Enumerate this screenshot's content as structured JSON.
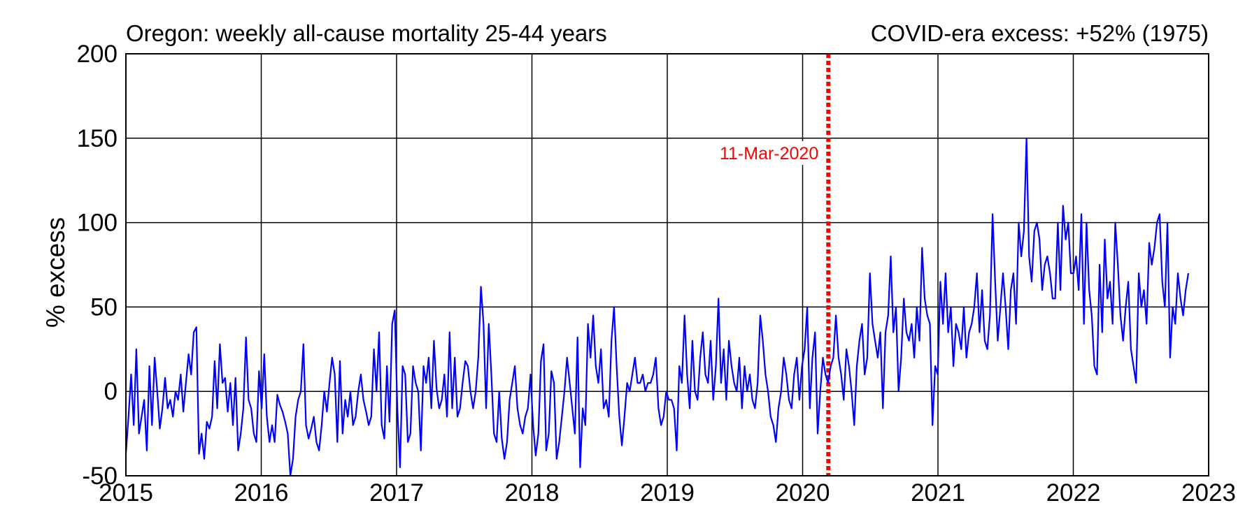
{
  "chart_data": {
    "type": "line",
    "title": "Oregon: weekly all-cause mortality 25-44 years",
    "subtitle": "COVID-era excess: +52% (1975)",
    "xlabel": "",
    "ylabel": "% excess",
    "xlim": [
      2015,
      2023
    ],
    "ylim": [
      -50,
      200
    ],
    "xticks": [
      "2015",
      "2016",
      "2017",
      "2018",
      "2019",
      "2020",
      "2021",
      "2022",
      "2023"
    ],
    "yticks": [
      "200",
      "150",
      "100",
      "50",
      "0",
      "-50"
    ],
    "grid": true,
    "colors": {
      "series": "#0000ff",
      "marker": "#ff0000",
      "grid": "#000000"
    },
    "marker": {
      "label": "11-Mar-2020",
      "x": 2020.19,
      "style": "dotted"
    },
    "series": [
      {
        "values": [
          -37,
          -15,
          10,
          -20,
          25,
          -25,
          -15,
          -5,
          -35,
          15,
          -20,
          20,
          0,
          -22,
          -10,
          8,
          -10,
          -5,
          -15,
          0,
          -5,
          10,
          -12,
          5,
          22,
          10,
          35,
          38,
          -37,
          -25,
          -40,
          -18,
          -22,
          -15,
          18,
          -10,
          28,
          5,
          8,
          -12,
          5,
          -20,
          8,
          -35,
          -25,
          -10,
          32,
          -5,
          -10,
          -25,
          -30,
          12,
          -10,
          22,
          -15,
          -30,
          -20,
          -30,
          -2,
          -8,
          -12,
          -18,
          -25,
          -50,
          -40,
          -15,
          -5,
          0,
          28,
          -20,
          -28,
          -22,
          -15,
          -30,
          -35,
          -20,
          0,
          -12,
          5,
          20,
          10,
          -30,
          18,
          -25,
          -5,
          -15,
          0,
          -20,
          -15,
          0,
          10,
          -5,
          -12,
          -20,
          -15,
          25,
          0,
          35,
          -20,
          -28,
          15,
          -18,
          40,
          48,
          -10,
          -45,
          15,
          10,
          -30,
          -25,
          15,
          5,
          0,
          -35,
          15,
          5,
          20,
          -10,
          30,
          2,
          -10,
          -5,
          10,
          -15,
          35,
          -10,
          20,
          -15,
          -10,
          5,
          18,
          15,
          0,
          -10,
          0,
          20,
          62,
          40,
          -10,
          40,
          10,
          -25,
          -30,
          0,
          -28,
          -40,
          -30,
          -5,
          5,
          15,
          -10,
          -20,
          -25,
          -15,
          -10,
          10,
          -20,
          -38,
          -25,
          18,
          28,
          -35,
          -25,
          12,
          5,
          -40,
          -30,
          -15,
          0,
          20,
          5,
          -10,
          -25,
          32,
          -45,
          -10,
          -20,
          40,
          20,
          45,
          15,
          5,
          25,
          -10,
          -5,
          -15,
          30,
          50,
          15,
          -15,
          -32,
          -15,
          5,
          0,
          10,
          20,
          5,
          5,
          10,
          0,
          5,
          5,
          10,
          20,
          -10,
          -20,
          -15,
          0,
          -5,
          -5,
          -10,
          -35,
          15,
          5,
          45,
          10,
          -10,
          30,
          0,
          -5,
          20,
          35,
          10,
          5,
          30,
          -5,
          15,
          55,
          5,
          25,
          -5,
          30,
          15,
          5,
          0,
          20,
          -10,
          15,
          0,
          10,
          -5,
          -10,
          5,
          45,
          30,
          10,
          0,
          -15,
          -20,
          -30,
          -10,
          0,
          20,
          10,
          -5,
          -10,
          10,
          20,
          -5,
          15,
          25,
          50,
          -10,
          20,
          35,
          -25,
          0,
          20,
          10,
          5,
          15,
          20,
          45,
          20,
          10,
          -5,
          25,
          15,
          0,
          -20,
          15,
          30,
          40,
          10,
          20,
          70,
          40,
          30,
          20,
          35,
          -10,
          35,
          45,
          80,
          35,
          50,
          0,
          20,
          55,
          35,
          30,
          40,
          20,
          50,
          30,
          85,
          55,
          45,
          40,
          -20,
          15,
          10,
          65,
          40,
          70,
          35,
          50,
          15,
          40,
          35,
          25,
          50,
          20,
          35,
          40,
          50,
          70,
          35,
          60,
          30,
          25,
          45,
          105,
          65,
          30,
          50,
          70,
          50,
          25,
          60,
          70,
          40,
          100,
          80,
          95,
          150,
          80,
          65,
          95,
          100,
          90,
          60,
          75,
          80,
          70,
          55,
          55,
          100,
          60,
          110,
          90,
          100,
          70,
          70,
          80,
          60,
          105,
          40,
          100,
          60,
          45,
          15,
          10,
          75,
          35,
          90,
          55,
          65,
          40,
          100,
          75,
          45,
          30,
          50,
          65,
          25,
          15,
          5,
          70,
          50,
          60,
          40,
          88,
          75,
          85,
          100,
          105,
          65,
          50,
          100,
          20,
          50,
          40,
          70,
          55,
          45,
          60,
          70
        ]
      }
    ]
  }
}
